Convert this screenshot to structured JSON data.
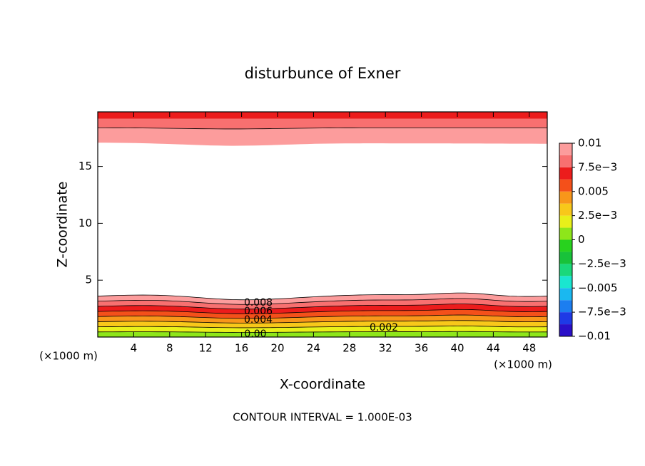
{
  "chart_data": {
    "type": "contour",
    "title": "disturbunce of Exner",
    "xlabel": "X-coordinate",
    "ylabel": "Z-coordinate",
    "unit_label": "(×1000 m)",
    "footnote": "CONTOUR INTERVAL = 1.000E-03",
    "xlim": [
      0,
      50
    ],
    "xticks": [
      4,
      8,
      12,
      16,
      20,
      24,
      28,
      32,
      36,
      40,
      44,
      48
    ],
    "ylim": [
      0,
      19.8
    ],
    "yticks": [
      5,
      10,
      15
    ],
    "levels": [
      -0.01,
      -0.00875,
      -0.0075,
      -0.00625,
      -0.005,
      -0.00375,
      -0.0025,
      -0.00125,
      0,
      0.00125,
      0.0025,
      0.00375,
      0.005,
      0.00625,
      0.0075,
      0.00875,
      0.01
    ],
    "level_colors": [
      "#7a1ab0",
      "#2a10c8",
      "#1e3ae6",
      "#1c7ef0",
      "#1ab8f0",
      "#1ae6d0",
      "#1ad87a",
      "#18c23a",
      "#28d21e",
      "#8ee61a",
      "#e8f01a",
      "#f8c81a",
      "#f8961a",
      "#f4501a",
      "#ec1c1c",
      "#f87070",
      "#fc9c9c"
    ],
    "colorbar_ticks": [
      {
        "value": -0.01,
        "label": "−0.01"
      },
      {
        "value": -0.0075,
        "label": "−7.5e−3"
      },
      {
        "value": -0.005,
        "label": "−0.005"
      },
      {
        "value": -0.0025,
        "label": "−2.5e−3"
      },
      0,
      {
        "value": 0.0025,
        "label": "2.5e−3"
      },
      0.005,
      {
        "value": 0.0075,
        "label": "7.5e−3"
      },
      0.01
    ],
    "contour_labels": [
      "0.008",
      "0.006",
      "0.004",
      "0.002",
      "0.00"
    ]
  }
}
